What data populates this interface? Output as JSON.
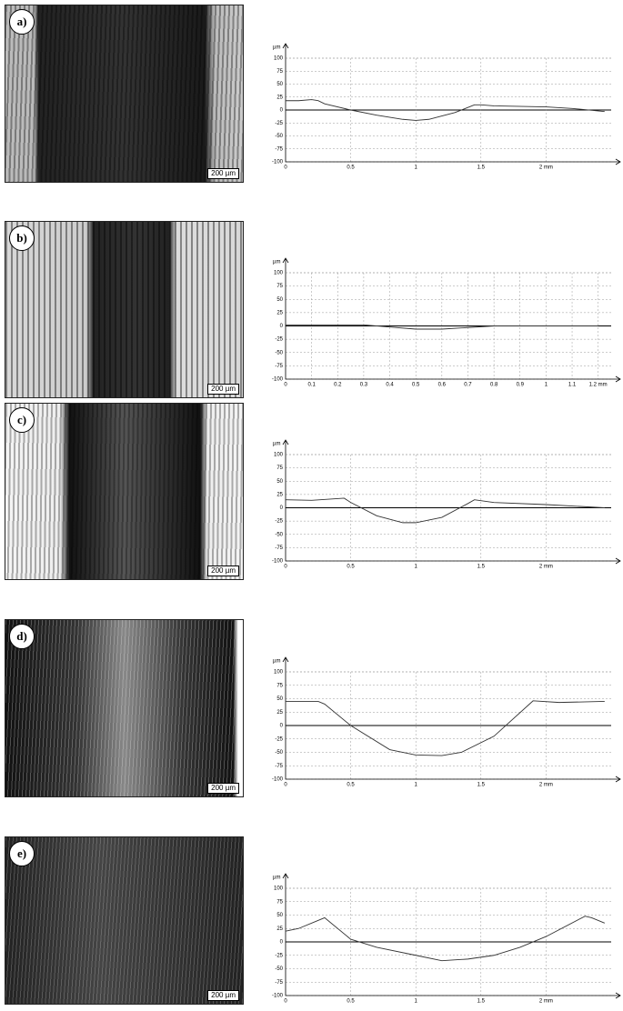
{
  "panels": [
    {
      "label": "a)",
      "scale_bar": "200 µm"
    },
    {
      "label": "b)",
      "scale_bar": "200 µm"
    },
    {
      "label": "c)",
      "scale_bar": "200 µm"
    },
    {
      "label": "d)",
      "scale_bar": "200 µm"
    },
    {
      "label": "e)",
      "scale_bar": "200 µm"
    }
  ],
  "chart_data": [
    {
      "type": "line",
      "ylabel": "µm",
      "color": "#333333",
      "x": [
        0,
        0.1,
        0.2,
        0.25,
        0.3,
        0.5,
        0.7,
        0.9,
        1.0,
        1.1,
        1.3,
        1.4,
        1.45,
        1.5,
        1.6,
        2.0,
        2.2,
        2.45
      ],
      "values": [
        18,
        18,
        20,
        18,
        12,
        0,
        -10,
        -18,
        -20,
        -18,
        -5,
        5,
        10,
        10,
        8,
        6,
        3,
        -3
      ],
      "xlim": [
        0,
        2.5
      ],
      "ylim": [
        -100,
        100
      ],
      "xticks": [
        0,
        0.5,
        1,
        1.5,
        {
          "value": 2,
          "label": "2 mm"
        }
      ],
      "yticks": [
        100,
        75,
        50,
        25,
        0,
        -25,
        -50,
        -75,
        -100
      ],
      "grid": true
    },
    {
      "type": "line",
      "ylabel": "µm",
      "color": "#333333",
      "x": [
        0,
        0.3,
        0.4,
        0.5,
        0.6,
        0.7,
        0.8,
        1.0,
        1.2
      ],
      "values": [
        2,
        2,
        -2,
        -6,
        -6,
        -3,
        0,
        0,
        0
      ],
      "xlim": [
        0,
        1.25
      ],
      "ylim": [
        -100,
        100
      ],
      "xticks": [
        0,
        0.1,
        0.2,
        0.3,
        0.4,
        0.5,
        0.6,
        0.7,
        0.8,
        0.9,
        1,
        1.1,
        {
          "value": 1.2,
          "label": "1.2 mm"
        }
      ],
      "yticks": [
        100,
        75,
        50,
        25,
        0,
        -25,
        -50,
        -75,
        -100
      ],
      "grid": true
    },
    {
      "type": "line",
      "ylabel": "µm",
      "color": "#333333",
      "x": [
        0,
        0.2,
        0.45,
        0.5,
        0.7,
        0.9,
        1.0,
        1.2,
        1.4,
        1.45,
        1.6,
        2.0,
        2.45
      ],
      "values": [
        15,
        14,
        18,
        10,
        -15,
        -28,
        -28,
        -18,
        8,
        15,
        10,
        6,
        0
      ],
      "xlim": [
        0,
        2.5
      ],
      "ylim": [
        -100,
        100
      ],
      "xticks": [
        0,
        0.5,
        1,
        1.5,
        {
          "value": 2,
          "label": "2 mm"
        }
      ],
      "yticks": [
        100,
        75,
        50,
        25,
        0,
        -25,
        -50,
        -75,
        -100
      ],
      "grid": true
    },
    {
      "type": "line",
      "ylabel": "µm",
      "color": "#333333",
      "x": [
        0,
        0.25,
        0.3,
        0.5,
        0.8,
        1.0,
        1.2,
        1.35,
        1.6,
        1.9,
        2.1,
        2.45
      ],
      "values": [
        45,
        45,
        40,
        0,
        -45,
        -55,
        -56,
        -50,
        -20,
        46,
        43,
        45
      ],
      "xlim": [
        0,
        2.5
      ],
      "ylim": [
        -100,
        100
      ],
      "xticks": [
        0,
        0.5,
        1,
        1.5,
        {
          "value": 2,
          "label": "2 mm"
        }
      ],
      "yticks": [
        100,
        75,
        50,
        25,
        0,
        -25,
        -50,
        -75,
        -100
      ],
      "grid": true
    },
    {
      "type": "line",
      "ylabel": "µm",
      "color": "#333333",
      "x": [
        0,
        0.1,
        0.3,
        0.5,
        0.7,
        1.0,
        1.2,
        1.4,
        1.6,
        1.8,
        2.0,
        2.3,
        2.35,
        2.45
      ],
      "values": [
        20,
        25,
        45,
        5,
        -10,
        -25,
        -35,
        -32,
        -25,
        -10,
        10,
        48,
        45,
        35
      ],
      "xlim": [
        0,
        2.5
      ],
      "ylim": [
        -100,
        100
      ],
      "xticks": [
        0,
        0.5,
        1,
        1.5,
        {
          "value": 2,
          "label": "2 mm"
        }
      ],
      "yticks": [
        100,
        75,
        50,
        25,
        0,
        -25,
        -50,
        -75,
        -100
      ],
      "grid": true
    }
  ]
}
